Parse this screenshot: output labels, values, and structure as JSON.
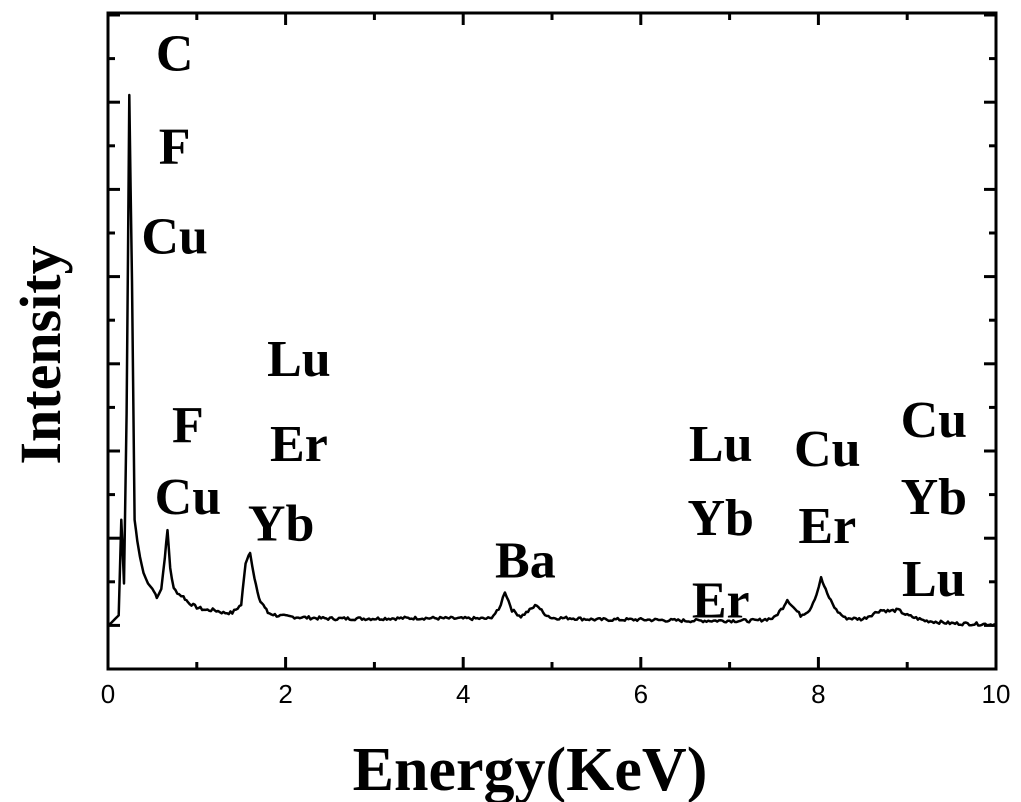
{
  "chart_data": {
    "type": "line",
    "title": "",
    "xlabel": "Energy(KeV)",
    "ylabel": "Intensity",
    "xlim": [
      0,
      10
    ],
    "ylim": [
      -0.05,
      1.0
    ],
    "x_ticks": [
      "0",
      "2",
      "4",
      "6",
      "8",
      "10"
    ],
    "y_tick_labels_shown": false,
    "grid": false,
    "legend": "none",
    "line_color": "#000000",
    "series": [
      {
        "x": [
          0.0,
          0.12,
          0.15,
          0.18,
          0.21,
          0.24,
          0.27,
          0.3,
          0.33,
          0.36,
          0.4,
          0.45,
          0.5,
          0.55,
          0.6,
          0.64,
          0.67,
          0.7,
          0.74,
          0.8,
          0.85,
          0.9,
          1.0,
          1.1,
          1.2,
          1.3,
          1.4,
          1.5,
          1.55,
          1.6,
          1.65,
          1.7,
          1.75,
          1.8,
          1.9,
          2.0,
          2.2,
          2.5,
          3.0,
          3.5,
          4.0,
          4.3,
          4.4,
          4.47,
          4.55,
          4.65,
          4.75,
          4.83,
          4.9,
          5.0,
          5.2,
          5.5,
          6.0,
          6.5,
          7.0,
          7.3,
          7.5,
          7.6,
          7.65,
          7.72,
          7.8,
          7.9,
          7.98,
          8.03,
          8.1,
          8.2,
          8.3,
          8.5,
          8.7,
          8.8,
          8.9,
          9.0,
          9.2,
          9.5,
          10.0
        ],
        "y": [
          0.0,
          0.02,
          0.2,
          0.08,
          0.4,
          1.0,
          0.65,
          0.2,
          0.16,
          0.13,
          0.1,
          0.08,
          0.07,
          0.055,
          0.07,
          0.13,
          0.18,
          0.11,
          0.07,
          0.06,
          0.055,
          0.045,
          0.035,
          0.03,
          0.03,
          0.025,
          0.025,
          0.04,
          0.12,
          0.14,
          0.09,
          0.05,
          0.04,
          0.025,
          0.02,
          0.018,
          0.016,
          0.014,
          0.014,
          0.015,
          0.014,
          0.014,
          0.03,
          0.065,
          0.03,
          0.018,
          0.03,
          0.04,
          0.025,
          0.015,
          0.015,
          0.012,
          0.012,
          0.01,
          0.01,
          0.01,
          0.015,
          0.035,
          0.05,
          0.035,
          0.02,
          0.03,
          0.06,
          0.09,
          0.06,
          0.03,
          0.015,
          0.013,
          0.03,
          0.028,
          0.03,
          0.02,
          0.01,
          0.005,
          0.003
        ]
      }
    ],
    "annotations": [
      {
        "text": "C",
        "x": 0.75,
        "y_frac": 1.08
      },
      {
        "text": "F",
        "x": 0.75,
        "y_frac": 0.905
      },
      {
        "text": "Cu",
        "x": 0.75,
        "y_frac": 0.735
      },
      {
        "text": "Lu",
        "x": 2.15,
        "y_frac": 0.505
      },
      {
        "text": "Er",
        "x": 2.15,
        "y_frac": 0.345
      },
      {
        "text": "F",
        "x": 0.9,
        "y_frac": 0.38
      },
      {
        "text": "Cu",
        "x": 0.9,
        "y_frac": 0.245
      },
      {
        "text": "Yb",
        "x": 1.95,
        "y_frac": 0.195
      },
      {
        "text": "Ba",
        "x": 4.7,
        "y_frac": 0.125
      },
      {
        "text": "Lu",
        "x": 6.9,
        "y_frac": 0.345
      },
      {
        "text": "Yb",
        "x": 6.9,
        "y_frac": 0.205
      },
      {
        "text": "Er",
        "x": 6.9,
        "y_frac": 0.05
      },
      {
        "text": "Cu",
        "x": 8.1,
        "y_frac": 0.335
      },
      {
        "text": "Er",
        "x": 8.1,
        "y_frac": 0.19
      },
      {
        "text": "Cu",
        "x": 9.3,
        "y_frac": 0.39
      },
      {
        "text": "Yb",
        "x": 9.3,
        "y_frac": 0.245
      },
      {
        "text": "Lu",
        "x": 9.3,
        "y_frac": 0.09
      }
    ]
  }
}
